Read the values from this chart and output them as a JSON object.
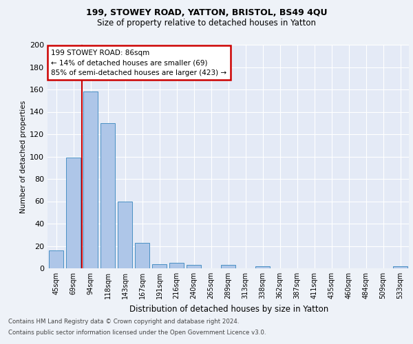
{
  "title1": "199, STOWEY ROAD, YATTON, BRISTOL, BS49 4QU",
  "title2": "Size of property relative to detached houses in Yatton",
  "xlabel": "Distribution of detached houses by size in Yatton",
  "ylabel": "Number of detached properties",
  "categories": [
    "45sqm",
    "69sqm",
    "94sqm",
    "118sqm",
    "143sqm",
    "167sqm",
    "191sqm",
    "216sqm",
    "240sqm",
    "265sqm",
    "289sqm",
    "313sqm",
    "338sqm",
    "362sqm",
    "387sqm",
    "411sqm",
    "435sqm",
    "460sqm",
    "484sqm",
    "509sqm",
    "533sqm"
  ],
  "values": [
    16,
    99,
    158,
    130,
    60,
    23,
    4,
    5,
    3,
    0,
    3,
    0,
    2,
    0,
    0,
    0,
    0,
    0,
    0,
    0,
    2
  ],
  "bar_color": "#aec6e8",
  "bar_edge_color": "#4a90c4",
  "vline_x_index": 1.5,
  "vline_color": "#cc0000",
  "annotation_text": "199 STOWEY ROAD: 86sqm\n← 14% of detached houses are smaller (69)\n85% of semi-detached houses are larger (423) →",
  "annotation_box_color": "#cc0000",
  "ylim": [
    0,
    200
  ],
  "yticks": [
    0,
    20,
    40,
    60,
    80,
    100,
    120,
    140,
    160,
    180,
    200
  ],
  "footer1": "Contains HM Land Registry data © Crown copyright and database right 2024.",
  "footer2": "Contains public sector information licensed under the Open Government Licence v3.0.",
  "bg_color": "#eef2f8",
  "plot_bg_color": "#e4eaf6"
}
